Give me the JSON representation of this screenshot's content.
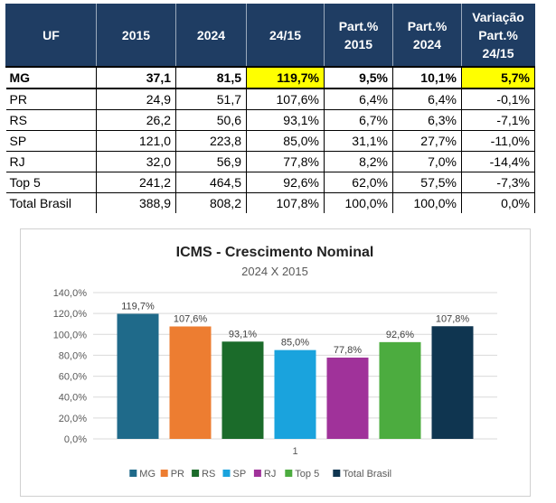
{
  "table": {
    "headers": [
      {
        "lines": [
          "UF"
        ]
      },
      {
        "lines": [
          "2015"
        ]
      },
      {
        "lines": [
          "2024"
        ]
      },
      {
        "lines": [
          "24/15"
        ]
      },
      {
        "lines": [
          "Part.%",
          "2015"
        ]
      },
      {
        "lines": [
          "Part.%",
          "2024"
        ]
      },
      {
        "lines": [
          "Variação",
          "Part.%",
          "24/15"
        ]
      }
    ],
    "rows": [
      {
        "uf": "MG",
        "v2015": "37,1",
        "v2024": "81,5",
        "g": "119,7%",
        "p15": "9,5%",
        "p24": "10,1%",
        "var": "5,7%"
      },
      {
        "uf": "PR",
        "v2015": "24,9",
        "v2024": "51,7",
        "g": "107,6%",
        "p15": "6,4%",
        "p24": "6,4%",
        "var": "-0,1%"
      },
      {
        "uf": "RS",
        "v2015": "26,2",
        "v2024": "50,6",
        "g": "93,1%",
        "p15": "6,7%",
        "p24": "6,3%",
        "var": "-7,1%"
      },
      {
        "uf": "SP",
        "v2015": "121,0",
        "v2024": "223,8",
        "g": "85,0%",
        "p15": "31,1%",
        "p24": "27,7%",
        "var": "-11,0%"
      },
      {
        "uf": "RJ",
        "v2015": "32,0",
        "v2024": "56,9",
        "g": "77,8%",
        "p15": "8,2%",
        "p24": "7,0%",
        "var": "-14,4%"
      },
      {
        "uf": "Top 5",
        "v2015": "241,2",
        "v2024": "464,5",
        "g": "92,6%",
        "p15": "62,0%",
        "p24": "57,5%",
        "var": "-7,3%"
      },
      {
        "uf": "Total Brasil",
        "v2015": "388,9",
        "v2024": "808,2",
        "g": "107,8%",
        "p15": "100,0%",
        "p24": "100,0%",
        "var": "0,0%"
      }
    ],
    "highlight_color": "#ffff00",
    "header_bg": "#1f3d63"
  },
  "chart_data": {
    "type": "bar",
    "title": "ICMS - Crescimento Nominal",
    "subtitle": "2024 X 2015",
    "categories": [
      "1"
    ],
    "ylim": [
      0,
      140
    ],
    "yticks": [
      "0,0%",
      "20,0%",
      "40,0%",
      "60,0%",
      "80,0%",
      "100,0%",
      "120,0%",
      "140,0%"
    ],
    "grid": true,
    "legend_position": "bottom",
    "series": [
      {
        "name": "MG",
        "value": 119.7,
        "label": "119,7%",
        "color": "#1f6a8a"
      },
      {
        "name": "PR",
        "value": 107.6,
        "label": "107,6%",
        "color": "#ed7d31"
      },
      {
        "name": "RS",
        "value": 93.1,
        "label": "93,1%",
        "color": "#1b6b2a"
      },
      {
        "name": "SP",
        "value": 85.0,
        "label": "85,0%",
        "color": "#1aa3dd"
      },
      {
        "name": "RJ",
        "value": 77.8,
        "label": "77,8%",
        "color": "#a0329a"
      },
      {
        "name": "Top 5",
        "value": 92.6,
        "label": "92,6%",
        "color": "#4cac3f"
      },
      {
        "name": "Total Brasil",
        "value": 107.8,
        "label": "107,8%",
        "color": "#0f3550"
      }
    ]
  }
}
